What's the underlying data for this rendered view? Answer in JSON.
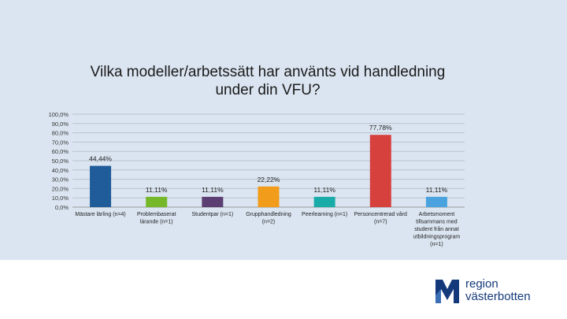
{
  "chart_data": {
    "type": "bar",
    "title": "Vilka modeller/arbetssätt har använts vid handledning under din VFU?",
    "xlabel": "",
    "ylabel": "",
    "ylim": [
      0,
      100
    ],
    "yticks": [
      "0,0%",
      "10,0%",
      "20,0%",
      "30,0%",
      "40,0%",
      "50,0%",
      "60,0%",
      "70,0%",
      "80,0%",
      "90,0%",
      "100,0%"
    ],
    "grid": true,
    "categories": [
      [
        "Mästare lärling (n=4)"
      ],
      [
        "Problembaserat",
        "lärande (n=1)"
      ],
      [
        "Studentpar (n=1)"
      ],
      [
        "Grupphandledning",
        "(n=2)"
      ],
      [
        "Peerlearning (n=1)"
      ],
      [
        "Personcentrerad vård",
        "(n=7)"
      ],
      [
        "Arbetsmoment",
        "tillsammans med",
        "student från annat",
        "utbildningsprogram",
        "(n=1)"
      ]
    ],
    "values": [
      44.44,
      11.11,
      11.11,
      22.22,
      11.11,
      77.78,
      11.11
    ],
    "labels": [
      "44,44%",
      "11,11%",
      "11,11%",
      "22,22%",
      "11,11%",
      "77,78%",
      "11,11%"
    ],
    "colors": [
      "#1f5c99",
      "#76b82a",
      "#5b3f73",
      "#f29c1b",
      "#19aba8",
      "#d6413e",
      "#4aa3df"
    ]
  },
  "logo": {
    "line1": "region",
    "line2": "västerbotten",
    "color": "#14397a"
  }
}
